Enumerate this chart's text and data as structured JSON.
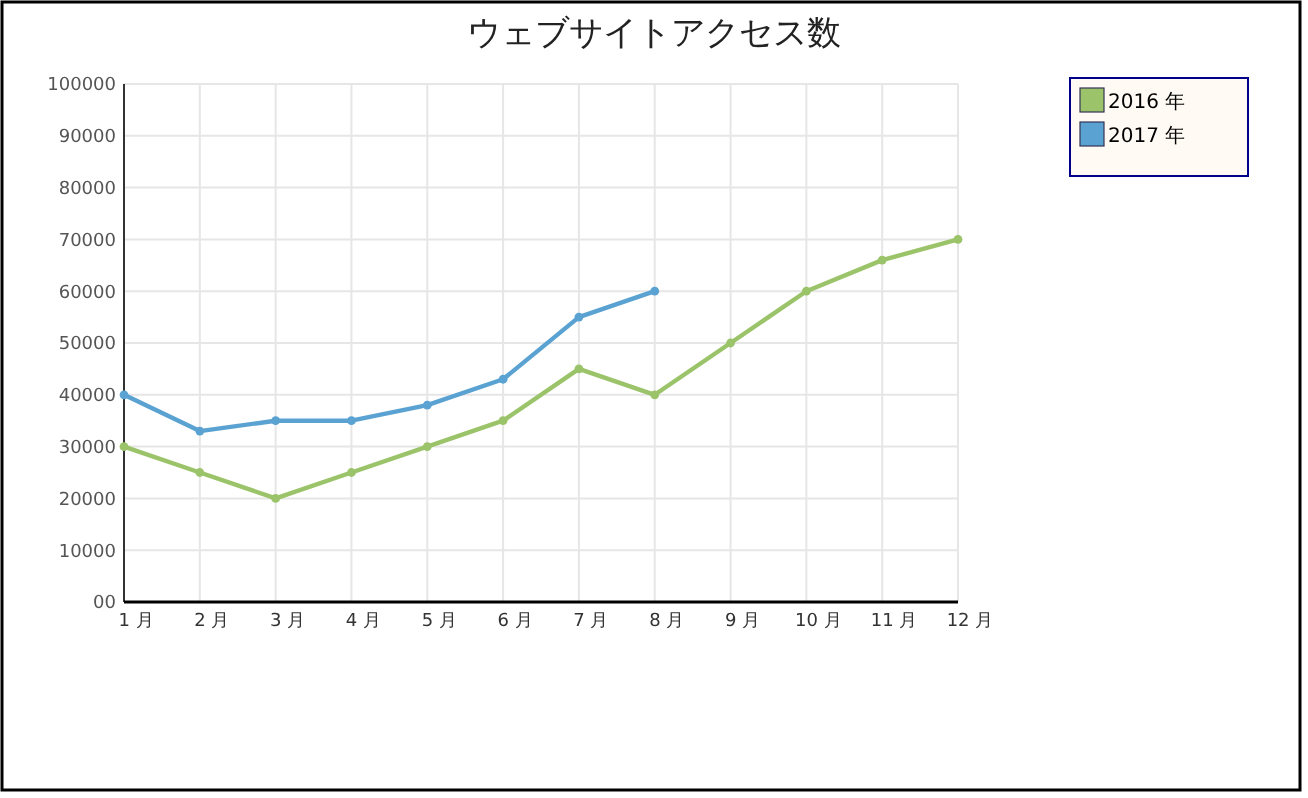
{
  "chart_data": {
    "type": "line",
    "title": "ウェブサイトアクセス数",
    "categories": [
      "1 月",
      "2 月",
      "3 月",
      "4 月",
      "5 月",
      "6 月",
      "7 月",
      "8 月",
      "9 月",
      "10 月",
      "11 月",
      "12 月"
    ],
    "series": [
      {
        "name": "2016 年",
        "color": "#9bc46a",
        "values": [
          30000,
          25000,
          20000,
          25000,
          30000,
          35000,
          45000,
          40000,
          50000,
          60000,
          66000,
          70000
        ]
      },
      {
        "name": "2017 年",
        "color": "#5aa2d2",
        "values": [
          40000,
          33000,
          35000,
          35000,
          38000,
          43000,
          55000,
          60000,
          null,
          null,
          null,
          null
        ]
      }
    ],
    "ylim": [
      0,
      100000
    ],
    "yticks": [
      {
        "value": 0,
        "label": "00"
      },
      10000,
      20000,
      30000,
      40000,
      50000,
      60000,
      70000,
      80000,
      90000,
      100000
    ],
    "grid": true,
    "legend": "right",
    "marker": "circle",
    "line_style": "solid"
  }
}
